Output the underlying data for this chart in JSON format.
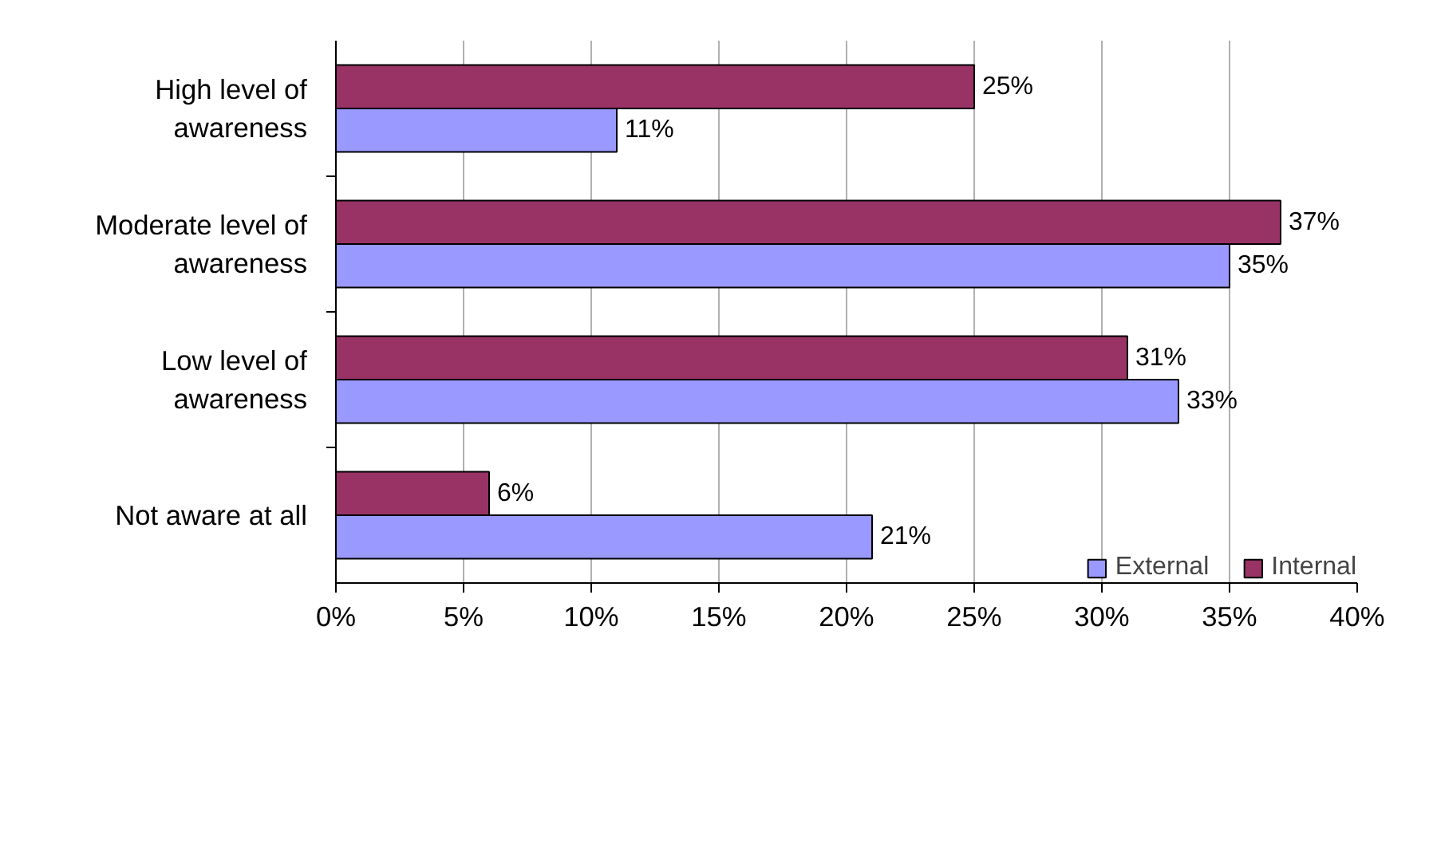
{
  "chart_data": {
    "type": "bar",
    "orientation": "horizontal",
    "categories": [
      "High level of awareness",
      "Moderate level of awareness",
      "Low level of awareness",
      "Not aware at all"
    ],
    "series": [
      {
        "name": "External",
        "color": "#9999ff",
        "values": [
          11,
          35,
          33,
          21
        ],
        "value_labels": [
          "11%",
          "35%",
          "33%",
          "21%"
        ]
      },
      {
        "name": "Internal",
        "color": "#993366",
        "values": [
          25,
          37,
          31,
          6
        ],
        "value_labels": [
          "25%",
          "37%",
          "31%",
          "6%"
        ]
      }
    ],
    "xlim": [
      0,
      40
    ],
    "xticks": [
      {
        "value": 0,
        "label": "0%"
      },
      {
        "value": 5,
        "label": "5%"
      },
      {
        "value": 10,
        "label": "10%"
      },
      {
        "value": 15,
        "label": "15%"
      },
      {
        "value": 20,
        "label": "20%"
      },
      {
        "value": 25,
        "label": "25%"
      },
      {
        "value": 30,
        "label": "30%"
      },
      {
        "value": 35,
        "label": "35%"
      },
      {
        "value": 40,
        "label": "40%"
      }
    ],
    "grid": "x",
    "legend": "bottom"
  }
}
